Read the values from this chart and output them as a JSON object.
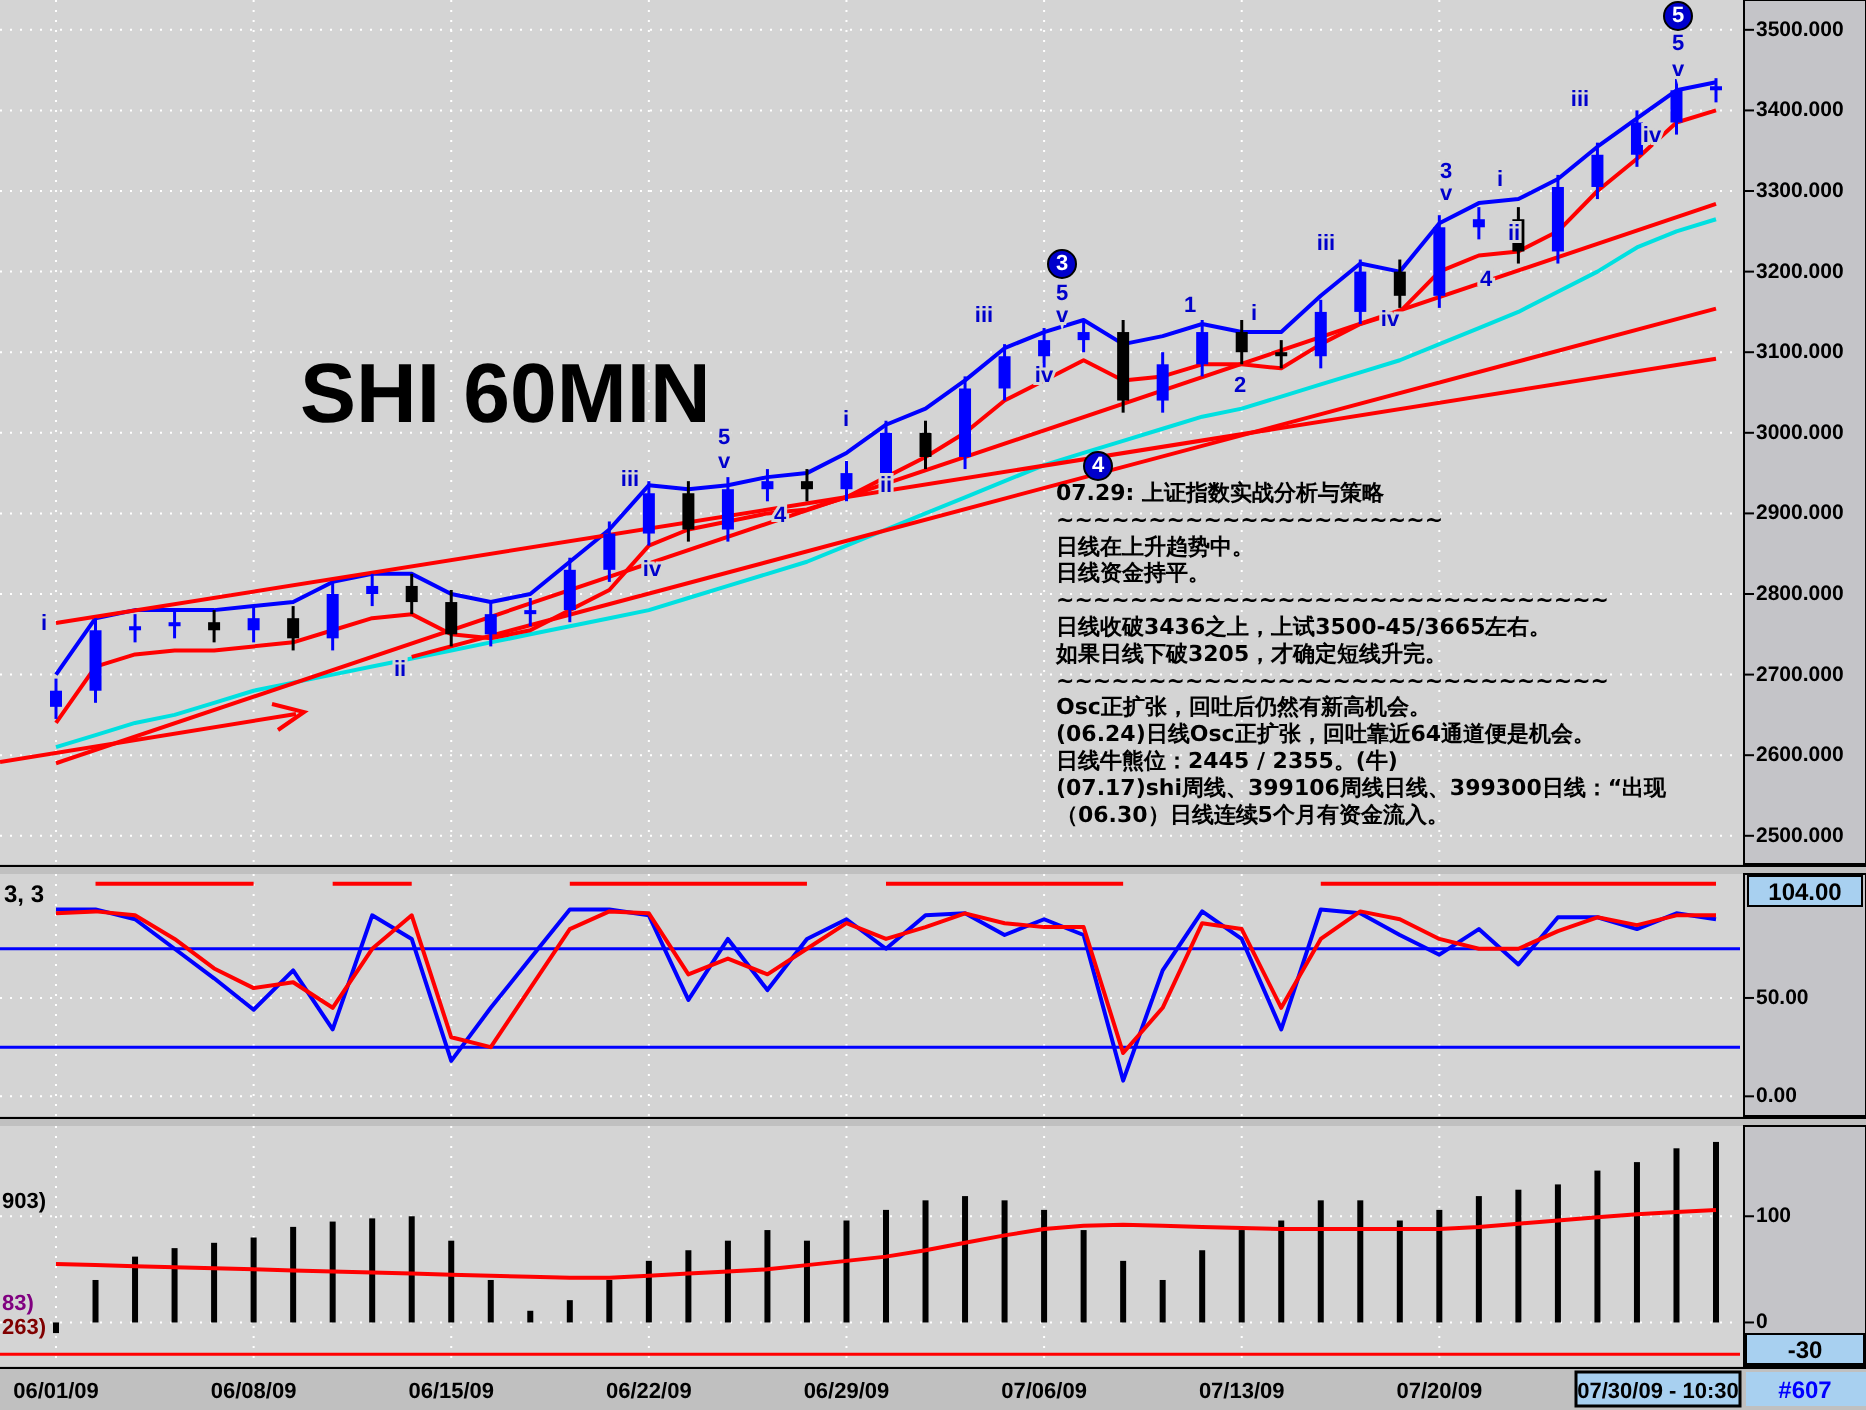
{
  "chart_data": [
    {
      "type": "candlestick",
      "title": "SHI 60MIN",
      "grid": true,
      "tick_labels": "y",
      "colors": [
        "#0000ff",
        "#0000ff",
        "#0000ff",
        "#0000ff",
        "#000000",
        "#0000ff",
        "#000000",
        "#0000ff",
        "#0000ff",
        "#000000",
        "#000000",
        "#0000ff",
        "#0000ff",
        "#0000ff",
        "#0000ff",
        "#0000ff",
        "#000000",
        "#0000ff",
        "#0000ff",
        "#000000",
        "#0000ff",
        "#0000ff",
        "#000000",
        "#0000ff",
        "#0000ff",
        "#0000ff",
        "#0000ff",
        "#000000",
        "#0000ff",
        "#0000ff",
        "#000000",
        "#000000",
        "#0000ff",
        "#0000ff",
        "#000000",
        "#0000ff",
        "#0000ff",
        "#000000",
        "#0000ff",
        "#0000ff",
        "#0000ff",
        "#0000ff",
        "#0000ff"
      ],
      "categories": [
        null,
        null,
        null,
        null,
        null,
        null,
        null,
        null,
        null,
        null,
        null,
        null,
        null,
        null,
        null,
        null,
        null,
        null,
        null,
        null,
        null,
        null,
        null,
        null,
        null,
        null,
        null,
        null,
        null,
        null,
        null,
        null,
        null,
        null,
        null,
        null,
        null,
        null,
        null,
        null,
        null,
        null,
        null
      ],
      "ylim": [
        2465,
        3537
      ],
      "yticks": [
        {
          "value": 2500,
          "label": "2500.000"
        },
        {
          "value": 2600,
          "label": "2600.000"
        },
        {
          "value": 2700,
          "label": "2700.000"
        },
        {
          "value": 2800,
          "label": "2800.000"
        },
        {
          "value": 2900,
          "label": "2900.000"
        },
        {
          "value": 3000,
          "label": "3000.000"
        },
        {
          "value": 3100,
          "label": "3100.000"
        },
        {
          "value": 3200,
          "label": "3200.000"
        },
        {
          "value": 3300,
          "label": "3300.000"
        },
        {
          "value": 3400,
          "label": "3400.000"
        },
        {
          "value": 3500,
          "label": "3500.000"
        }
      ],
      "ohlc": [
        [
          2660,
          2695,
          2645,
          2680
        ],
        [
          2680,
          2770,
          2665,
          2755
        ],
        [
          2755,
          2775,
          2740,
          2760
        ],
        [
          2760,
          2780,
          2745,
          2765
        ],
        [
          2765,
          2780,
          2740,
          2755
        ],
        [
          2755,
          2785,
          2740,
          2770
        ],
        [
          2770,
          2785,
          2730,
          2745
        ],
        [
          2745,
          2815,
          2730,
          2800
        ],
        [
          2800,
          2825,
          2785,
          2810
        ],
        [
          2810,
          2825,
          2775,
          2790
        ],
        [
          2790,
          2805,
          2735,
          2750
        ],
        [
          2750,
          2790,
          2735,
          2775
        ],
        [
          2775,
          2795,
          2760,
          2780
        ],
        [
          2780,
          2845,
          2765,
          2830
        ],
        [
          2830,
          2890,
          2815,
          2875
        ],
        [
          2875,
          2940,
          2860,
          2925
        ],
        [
          2925,
          2940,
          2865,
          2880
        ],
        [
          2880,
          2945,
          2865,
          2930
        ],
        [
          2930,
          2955,
          2915,
          2940
        ],
        [
          2940,
          2955,
          2915,
          2930
        ],
        [
          2930,
          2965,
          2915,
          2950
        ],
        [
          2950,
          3015,
          2935,
          3000
        ],
        [
          3000,
          3015,
          2955,
          2970
        ],
        [
          2970,
          3070,
          2955,
          3055
        ],
        [
          3055,
          3110,
          3040,
          3095
        ],
        [
          3095,
          3130,
          3080,
          3115
        ],
        [
          3115,
          3140,
          3100,
          3125
        ],
        [
          3125,
          3140,
          3025,
          3040
        ],
        [
          3040,
          3100,
          3025,
          3085
        ],
        [
          3085,
          3140,
          3070,
          3125
        ],
        [
          3125,
          3140,
          3085,
          3100
        ],
        [
          3100,
          3115,
          3080,
          3095
        ],
        [
          3095,
          3165,
          3080,
          3150
        ],
        [
          3150,
          3215,
          3135,
          3200
        ],
        [
          3200,
          3215,
          3155,
          3170
        ],
        [
          3170,
          3270,
          3155,
          3255
        ],
        [
          3255,
          3280,
          3240,
          3265
        ],
        [
          3265,
          3280,
          3210,
          3225
        ],
        [
          3225,
          3320,
          3210,
          3305
        ],
        [
          3305,
          3360,
          3290,
          3345
        ],
        [
          3345,
          3400,
          3330,
          3385
        ],
        [
          3385,
          3440,
          3370,
          3425
        ],
        [
          3425,
          3440,
          3410,
          3430
        ]
      ],
      "series": [
        {
          "type": "line",
          "color": "#00e0e0",
          "values": [
            2610,
            2625,
            2640,
            2650,
            2665,
            2680,
            2690,
            2700,
            2710,
            2720,
            2730,
            2740,
            2750,
            2760,
            2770,
            2780,
            2795,
            2810,
            2825,
            2840,
            2860,
            2880,
            2900,
            2920,
            2940,
            2960,
            2975,
            2990,
            3005,
            3020,
            3030,
            3045,
            3060,
            3075,
            3090,
            3110,
            3130,
            3150,
            3175,
            3200,
            3230,
            3250,
            3265
          ]
        },
        {
          "type": "line",
          "color": "#0000ff",
          "values": [
            2700,
            2770,
            2780,
            2780,
            2780,
            2785,
            2790,
            2815,
            2825,
            2825,
            2800,
            2790,
            2800,
            2840,
            2880,
            2935,
            2930,
            2935,
            2945,
            2950,
            2975,
            3010,
            3030,
            3065,
            3105,
            3125,
            3140,
            3110,
            3120,
            3135,
            3125,
            3125,
            3170,
            3210,
            3200,
            3260,
            3285,
            3290,
            3315,
            3355,
            3390,
            3425,
            3435
          ]
        },
        {
          "type": "line",
          "color": "#ff0000",
          "values": [
            2640,
            2710,
            2725,
            2730,
            2730,
            2735,
            2740,
            2755,
            2770,
            2775,
            2750,
            2745,
            2755,
            2780,
            2805,
            2860,
            2880,
            2890,
            2900,
            2905,
            2920,
            2945,
            2970,
            3000,
            3040,
            3065,
            3090,
            3065,
            3070,
            3085,
            3085,
            3080,
            3110,
            3135,
            3150,
            3200,
            3220,
            3225,
            3250,
            3300,
            3340,
            3385,
            3400
          ]
        },
        {
          "type": "line",
          "color": "#ff0000",
          "values": [
            2590,
            null,
            null,
            null,
            null,
            null,
            null,
            null,
            null,
            null,
            null,
            null,
            null,
            null,
            null,
            null,
            null,
            null,
            null,
            null,
            null,
            null,
            null,
            null,
            null,
            null,
            null,
            null,
            null,
            null,
            null,
            null,
            null,
            null,
            null,
            null,
            null,
            null,
            null,
            null,
            null,
            null,
            3284
          ]
        },
        {
          "type": "line",
          "color": "#ff0000",
          "values": [
            null,
            null,
            null,
            null,
            null,
            null,
            null,
            null,
            null,
            2722,
            null,
            null,
            null,
            null,
            null,
            null,
            null,
            null,
            null,
            null,
            null,
            null,
            null,
            null,
            null,
            null,
            null,
            null,
            null,
            null,
            null,
            null,
            null,
            null,
            null,
            null,
            null,
            null,
            null,
            null,
            null,
            null,
            3154
          ]
        },
        {
          "type": "line",
          "color": "#ff0000",
          "values": [
            2764,
            null,
            null,
            null,
            null,
            null,
            null,
            null,
            null,
            null,
            null,
            null,
            null,
            null,
            null,
            null,
            null,
            null,
            null,
            null,
            null,
            null,
            null,
            null,
            null,
            null,
            null,
            null,
            null,
            null,
            null,
            null,
            null,
            null,
            null,
            null,
            null,
            null,
            null,
            null,
            null,
            null,
            3092
          ]
        }
      ],
      "annotations": [
        "i",
        "ii",
        "iii",
        "iv",
        "5",
        "v",
        "4",
        "i",
        "ii",
        "iii",
        "iv",
        "3",
        "5",
        "v",
        "4",
        "1",
        "2",
        "i",
        "iii",
        "iv",
        "3",
        "v",
        "4",
        "i",
        "ii",
        "iii",
        "iv",
        "5",
        "v",
        "5",
        "07.29: 上证指数实战分析与策略",
        "~~~~~~~~~~~~~~~~~~~~~",
        "日线在上升趋势中。",
        "日线资金持平。",
        "~~~~~~~~~~~~~~~~~~~~~~~~~~~~~~",
        "日线收破3436之上，上试3500-45/3665左右。",
        "如果日线下破3205，才确定短线升完。",
        "~~~~~~~~~~~~~~~~~~~~~~~~~~~~~~",
        "Osc正扩张，回吐后仍然有新高机会。",
        "(06.24)日线Osc正扩张，回吐靠近64通道便是机会。",
        "日线牛熊位：2445 / 2355。(牛)",
        "(07.17)shi周线、399106周线日线、399300日线：“出现",
        "（06.30）日线连续5个月有资金流入。"
      ]
    },
    {
      "type": "line",
      "grid": true,
      "tick_labels": "y",
      "categories": [
        null,
        null,
        null,
        null,
        null,
        null,
        null,
        null,
        null,
        null,
        null,
        null,
        null,
        null,
        null,
        null,
        null,
        null,
        null,
        null,
        null,
        null,
        null,
        null,
        null,
        null,
        null,
        null,
        null,
        null,
        null,
        null,
        null,
        null,
        null,
        null,
        null,
        null,
        null,
        null,
        null,
        null,
        null
      ],
      "ylim": [
        -10,
        113
      ],
      "yticks": [
        {
          "value": 0,
          "label": "0.00"
        },
        {
          "value": 50,
          "label": "50.00"
        }
      ],
      "series": [
        {
          "color": "#ff0000",
          "values": [
            null,
            108,
            108,
            108,
            108,
            108,
            null,
            108,
            108,
            108,
            null,
            null,
            null,
            108,
            108,
            108,
            108,
            108,
            108,
            108,
            null,
            108,
            108,
            108,
            108,
            108,
            108,
            108,
            null,
            null,
            null,
            null,
            108,
            108,
            108,
            108,
            108,
            108,
            108,
            108,
            108,
            108,
            108
          ]
        },
        {
          "color": "#0000ff",
          "values": [
            95,
            95,
            90,
            75,
            60,
            44,
            64,
            34,
            92,
            80,
            18,
            45,
            70,
            95,
            95,
            92,
            49,
            80,
            54,
            80,
            90,
            75,
            92,
            93,
            82,
            90,
            82,
            8,
            64,
            94,
            80,
            34,
            95,
            93,
            82,
            72,
            85,
            67,
            91,
            91,
            85,
            93,
            90
          ]
        },
        {
          "color": "#ff0000",
          "values": [
            93,
            94,
            92,
            80,
            65,
            55,
            58,
            45,
            75,
            92,
            30,
            25,
            55,
            85,
            94,
            93,
            62,
            70,
            62,
            75,
            88,
            80,
            86,
            93,
            88,
            86,
            86,
            22,
            45,
            88,
            85,
            45,
            80,
            94,
            90,
            80,
            75,
            75,
            84,
            91,
            87,
            92,
            92
          ]
        }
      ],
      "ref_lines": [
        {
          "axis": "y",
          "value": 75,
          "color": "#0000ff"
        },
        {
          "axis": "y",
          "value": 25,
          "color": "#0000ff"
        }
      ],
      "annotations": [
        "3, 3",
        "104.00"
      ]
    },
    {
      "type": "bar",
      "grid": true,
      "categories": [
        "06/01/09",
        null,
        null,
        null,
        null,
        "06/08/09",
        null,
        null,
        null,
        null,
        "06/15/09",
        null,
        null,
        null,
        null,
        "06/22/09",
        null,
        null,
        null,
        null,
        "06/29/09",
        null,
        null,
        null,
        null,
        "07/06/09",
        null,
        null,
        null,
        null,
        "07/13/09",
        null,
        null,
        null,
        null,
        "07/20/09",
        null,
        null,
        null,
        null,
        null,
        null,
        null
      ],
      "ylim": [
        -41,
        185
      ],
      "yticks": [
        0,
        100
      ],
      "series": [
        {
          "type": "bar",
          "color": "#000000",
          "values": [
            -10,
            40,
            62,
            70,
            75,
            80,
            90,
            95,
            98,
            100,
            77,
            40,
            11,
            21,
            40,
            58,
            68,
            77,
            87,
            77,
            96,
            106,
            115,
            119,
            115,
            106,
            87,
            58,
            40,
            68,
            87,
            96,
            115,
            115,
            96,
            106,
            119,
            125,
            130,
            143,
            151,
            164,
            170
          ]
        },
        {
          "type": "line",
          "color": "#ff0000",
          "values": [
            55,
            54,
            53,
            52,
            51,
            50,
            49,
            48,
            47,
            46,
            45,
            44,
            43,
            42,
            42,
            44,
            46,
            48,
            50,
            54,
            58,
            62,
            68,
            75,
            82,
            88,
            91,
            92,
            91,
            90,
            89,
            88,
            88,
            88,
            88,
            88,
            90,
            93,
            96,
            99,
            102,
            104,
            106
          ]
        }
      ],
      "ref_lines": [
        {
          "axis": "y",
          "value": -30,
          "label": "-30",
          "color": "#ff0000"
        }
      ],
      "annotations": [
        "07/30/09 - 10:30",
        "#607",
        "903)",
        "83)",
        "263)"
      ]
    }
  ]
}
